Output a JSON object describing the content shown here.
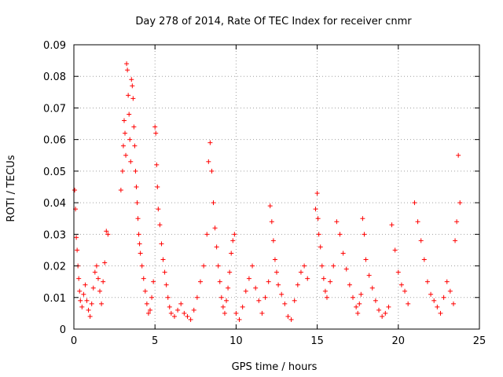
{
  "chart_data": {
    "type": "scatter",
    "title": "Day 278 of 2014, Rate Of TEC Index for receiver cnmr",
    "xlabel": "GPS time / hours",
    "ylabel": "ROTI / TECUs",
    "xlim": [
      0,
      25
    ],
    "ylim": [
      0,
      0.09
    ],
    "xticks": [
      "0",
      "5",
      "10",
      "15",
      "20",
      "25"
    ],
    "yticks": [
      "0",
      "0.01",
      "0.02",
      "0.03",
      "0.04",
      "0.05",
      "0.06",
      "0.07",
      "0.08",
      "0.09"
    ],
    "grid": true,
    "marker": "+",
    "marker_color": "#ff0000",
    "series": [
      {
        "name": "ROTI",
        "x": [
          0.05,
          0.1,
          0.15,
          0.2,
          0.25,
          0.3,
          0.35,
          0.4,
          0.5,
          0.6,
          0.7,
          0.8,
          0.9,
          1.0,
          1.1,
          1.2,
          1.3,
          1.4,
          1.5,
          1.6,
          1.7,
          1.8,
          1.9,
          2.0,
          2.1,
          2.9,
          3.0,
          3.05,
          3.1,
          3.15,
          3.2,
          3.25,
          3.3,
          3.35,
          3.4,
          3.45,
          3.5,
          3.55,
          3.6,
          3.65,
          3.7,
          3.75,
          3.8,
          3.85,
          3.9,
          3.95,
          4.0,
          4.05,
          4.1,
          4.2,
          4.3,
          4.4,
          4.5,
          4.6,
          4.7,
          4.8,
          4.9,
          5.0,
          5.05,
          5.1,
          5.15,
          5.2,
          5.3,
          5.4,
          5.5,
          5.6,
          5.7,
          5.8,
          5.9,
          6.0,
          6.2,
          6.4,
          6.6,
          6.8,
          7.0,
          7.2,
          7.4,
          7.6,
          7.8,
          8.0,
          8.2,
          8.3,
          8.4,
          8.5,
          8.6,
          8.7,
          8.8,
          8.9,
          9.0,
          9.1,
          9.2,
          9.3,
          9.4,
          9.5,
          9.6,
          9.7,
          9.8,
          9.9,
          10.0,
          10.2,
          10.4,
          10.6,
          10.8,
          11.0,
          11.2,
          11.4,
          11.6,
          11.8,
          12.0,
          12.1,
          12.2,
          12.3,
          12.4,
          12.5,
          12.6,
          12.8,
          13.0,
          13.2,
          13.4,
          13.6,
          13.8,
          14.0,
          14.2,
          14.4,
          14.9,
          15.0,
          15.05,
          15.1,
          15.2,
          15.3,
          15.4,
          15.5,
          15.6,
          15.8,
          16.0,
          16.2,
          16.4,
          16.6,
          16.8,
          17.0,
          17.2,
          17.4,
          17.5,
          17.6,
          17.7,
          17.8,
          17.9,
          18.0,
          18.2,
          18.4,
          18.6,
          18.8,
          19.0,
          19.2,
          19.4,
          19.6,
          19.8,
          20.0,
          20.2,
          20.4,
          20.6,
          21.0,
          21.2,
          21.4,
          21.6,
          21.8,
          22.0,
          22.2,
          22.4,
          22.6,
          22.8,
          23.0,
          23.2,
          23.4,
          23.5,
          23.6,
          23.7,
          23.8
        ],
        "y": [
          0.044,
          0.038,
          0.029,
          0.025,
          0.02,
          0.016,
          0.012,
          0.009,
          0.007,
          0.011,
          0.014,
          0.009,
          0.006,
          0.004,
          0.008,
          0.013,
          0.018,
          0.02,
          0.016,
          0.012,
          0.008,
          0.015,
          0.021,
          0.031,
          0.03,
          0.044,
          0.05,
          0.058,
          0.066,
          0.062,
          0.055,
          0.084,
          0.082,
          0.074,
          0.068,
          0.06,
          0.053,
          0.079,
          0.077,
          0.073,
          0.064,
          0.058,
          0.05,
          0.045,
          0.04,
          0.035,
          0.03,
          0.027,
          0.024,
          0.02,
          0.016,
          0.012,
          0.008,
          0.005,
          0.006,
          0.01,
          0.015,
          0.064,
          0.062,
          0.052,
          0.045,
          0.038,
          0.033,
          0.027,
          0.022,
          0.018,
          0.014,
          0.01,
          0.007,
          0.005,
          0.004,
          0.006,
          0.008,
          0.005,
          0.004,
          0.003,
          0.006,
          0.01,
          0.015,
          0.02,
          0.03,
          0.053,
          0.059,
          0.05,
          0.04,
          0.032,
          0.026,
          0.02,
          0.015,
          0.01,
          0.007,
          0.005,
          0.009,
          0.013,
          0.018,
          0.024,
          0.028,
          0.03,
          0.005,
          0.003,
          0.007,
          0.012,
          0.016,
          0.02,
          0.013,
          0.009,
          0.005,
          0.01,
          0.015,
          0.039,
          0.034,
          0.028,
          0.022,
          0.018,
          0.014,
          0.011,
          0.008,
          0.004,
          0.003,
          0.009,
          0.014,
          0.018,
          0.02,
          0.016,
          0.038,
          0.043,
          0.035,
          0.03,
          0.026,
          0.02,
          0.016,
          0.012,
          0.01,
          0.015,
          0.02,
          0.034,
          0.03,
          0.024,
          0.019,
          0.014,
          0.01,
          0.007,
          0.005,
          0.008,
          0.011,
          0.035,
          0.03,
          0.022,
          0.017,
          0.013,
          0.009,
          0.006,
          0.004,
          0.005,
          0.007,
          0.033,
          0.025,
          0.018,
          0.014,
          0.012,
          0.008,
          0.04,
          0.034,
          0.028,
          0.022,
          0.015,
          0.011,
          0.009,
          0.007,
          0.005,
          0.01,
          0.015,
          0.012,
          0.008,
          0.028,
          0.034,
          0.055,
          0.04
        ]
      }
    ]
  }
}
